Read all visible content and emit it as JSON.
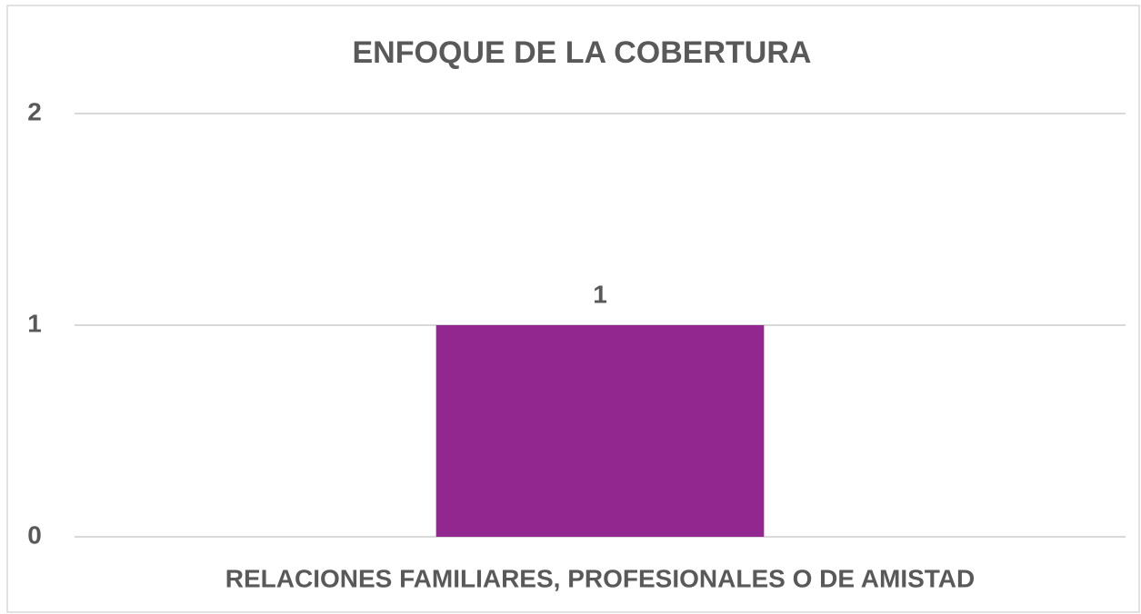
{
  "chart_data": {
    "type": "bar",
    "title": "ENFOQUE DE LA COBERTURA",
    "categories": [
      "RELACIONES FAMILIARES, PROFESIONALES O DE AMISTAD"
    ],
    "values": [
      1
    ],
    "color": "#92278f",
    "ylim": [
      0,
      2
    ],
    "yticks": [
      0,
      1,
      2
    ],
    "grid": true
  }
}
